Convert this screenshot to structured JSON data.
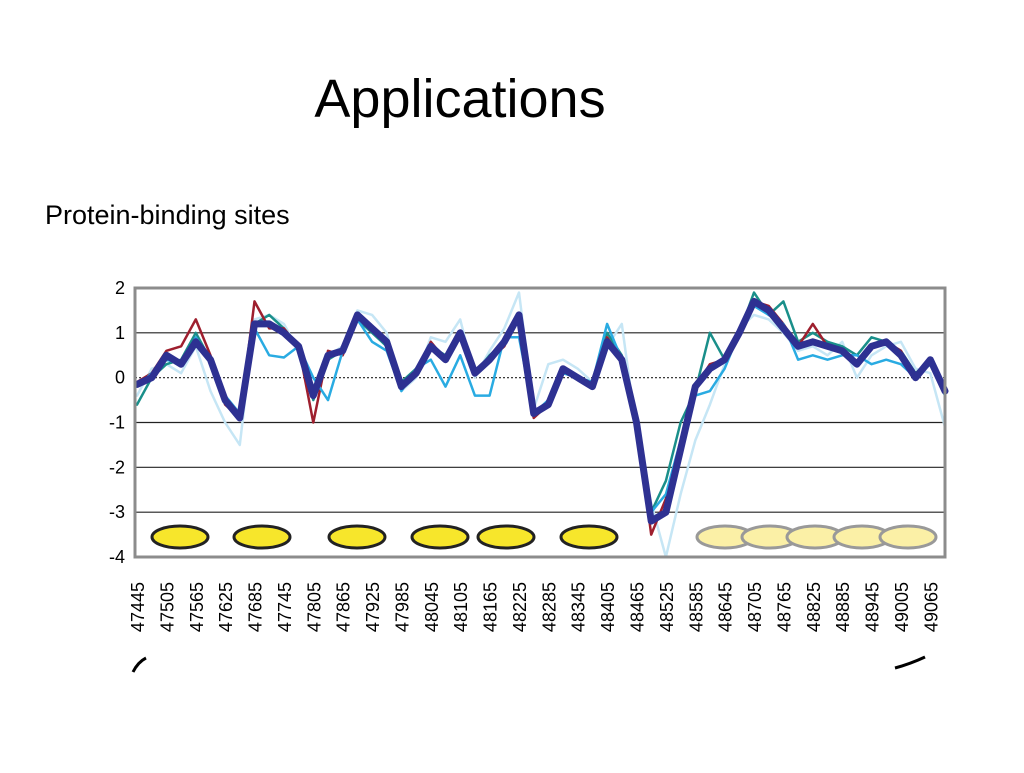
{
  "title": "Applications",
  "bullet": "Protein-binding sites",
  "chart_data": {
    "type": "line",
    "categories": [
      "47445",
      null,
      "47505",
      null,
      "47565",
      null,
      "47625",
      null,
      "47685",
      null,
      "47745",
      null,
      "47805",
      null,
      "47865",
      null,
      "47925",
      null,
      "47985",
      null,
      "48045",
      null,
      "48105",
      null,
      "48165",
      null,
      "48225",
      null,
      "48285",
      null,
      "48345",
      null,
      "48405",
      null,
      "48465",
      null,
      "48525",
      null,
      "48585",
      null,
      "48645",
      null,
      "48705",
      null,
      "48765",
      null,
      "48825",
      null,
      "48885",
      null,
      "48945",
      null,
      "49005",
      null,
      "49065",
      null
    ],
    "ylim": [
      -4,
      2
    ],
    "yticks": [
      -4,
      -3,
      -2,
      -1,
      0,
      1,
      2
    ],
    "grid": true,
    "series": [
      {
        "color": "#c6e6f5",
        "values": [
          -0.4,
          0.2,
          0.3,
          0.1,
          0.7,
          -0.3,
          -1.0,
          -1.5,
          1.3,
          1.4,
          1.2,
          0.6,
          -0.2,
          0.5,
          0.7,
          1.5,
          1.4,
          1.0,
          -0.3,
          0,
          0.9,
          0.8,
          1.3,
          0,
          0.6,
          1.1,
          1.9,
          -0.7,
          0.3,
          0.4,
          0.2,
          -0.1,
          0.7,
          1.2,
          -1.2,
          -2.8,
          -4.0,
          -2.6,
          -1.4,
          -0.6,
          0.3,
          1.1,
          1.4,
          1.3,
          1.0,
          0.6,
          0.7,
          0.5,
          0.8,
          0,
          0.5,
          0.7,
          0.8,
          0.2,
          0.1,
          -1.1
        ]
      },
      {
        "color": "#1a8f8a",
        "values": [
          -0.6,
          0,
          0.3,
          0.4,
          1.0,
          0.4,
          -0.5,
          -0.8,
          1.2,
          1.4,
          1.1,
          0.7,
          -0.5,
          0.4,
          0.6,
          1.3,
          1.0,
          0.7,
          -0.1,
          0.2,
          0.7,
          0.5,
          1.0,
          0.1,
          0.5,
          0.8,
          1.4,
          -0.8,
          -0.6,
          0.2,
          0,
          -0.1,
          1.0,
          0.5,
          -1.0,
          -3.0,
          -2.3,
          -1.0,
          -0.3,
          1.0,
          0.4,
          1.0,
          1.9,
          1.4,
          1.7,
          0.8,
          1.0,
          0.8,
          0.7,
          0.5,
          0.9,
          0.8,
          0.6,
          0.1,
          0.4,
          -0.3
        ]
      },
      {
        "color": "#9e1f2e",
        "values": [
          -0.1,
          0.1,
          0.6,
          0.7,
          1.3,
          0.5,
          -0.6,
          -0.9,
          1.7,
          1.1,
          1.1,
          0.7,
          -1.0,
          0.6,
          0.5,
          1.3,
          1.1,
          0.8,
          -0.2,
          0.1,
          0.8,
          0.4,
          0.9,
          0.1,
          0.4,
          0.7,
          1.4,
          -0.9,
          -0.6,
          0.2,
          0,
          -0.2,
          0.9,
          0.4,
          -1.0,
          -3.5,
          -2.7,
          -1.5,
          -0.2,
          0.3,
          0.4,
          1.0,
          1.7,
          1.6,
          1.2,
          0.7,
          1.2,
          0.7,
          0.6,
          0.3,
          0.7,
          0.8,
          0.6,
          0,
          0.4,
          -0.3
        ]
      },
      {
        "color": "#29abe2",
        "values": [
          -0.2,
          0.1,
          0.4,
          0.3,
          0.9,
          0.4,
          -0.4,
          -0.8,
          1.1,
          0.5,
          0.45,
          0.7,
          0,
          -0.5,
          0.6,
          1.3,
          0.8,
          0.6,
          -0.3,
          0.2,
          0.4,
          -0.2,
          0.5,
          -0.4,
          -0.4,
          0.9,
          0.9,
          -0.8,
          -0.5,
          0.1,
          0,
          -0.1,
          1.2,
          0.4,
          -1.0,
          -3.0,
          -2.6,
          -1.4,
          -0.4,
          -0.3,
          0.2,
          1.0,
          1.6,
          1.4,
          1.2,
          0.4,
          0.5,
          0.4,
          0.5,
          0.5,
          0.3,
          0.4,
          0.3,
          0,
          0.3,
          -0.4
        ]
      },
      {
        "color": "#2e3192",
        "values": [
          -0.15,
          0.0,
          0.5,
          0.3,
          0.8,
          0.4,
          -0.5,
          -0.9,
          1.2,
          1.2,
          1.0,
          0.7,
          -0.4,
          0.5,
          0.6,
          1.4,
          1.1,
          0.8,
          -0.2,
          0.1,
          0.7,
          0.4,
          1.0,
          0.1,
          0.4,
          0.8,
          1.4,
          -0.8,
          -0.6,
          0.2,
          0.0,
          -0.2,
          0.8,
          0.4,
          -1.0,
          -3.2,
          -3.0,
          -1.6,
          -0.2,
          0.2,
          0.4,
          1.0,
          1.7,
          1.5,
          1.1,
          0.7,
          0.8,
          0.7,
          0.6,
          0.3,
          0.7,
          0.8,
          0.5,
          0.0,
          0.4,
          -0.3
        ]
      }
    ]
  }
}
